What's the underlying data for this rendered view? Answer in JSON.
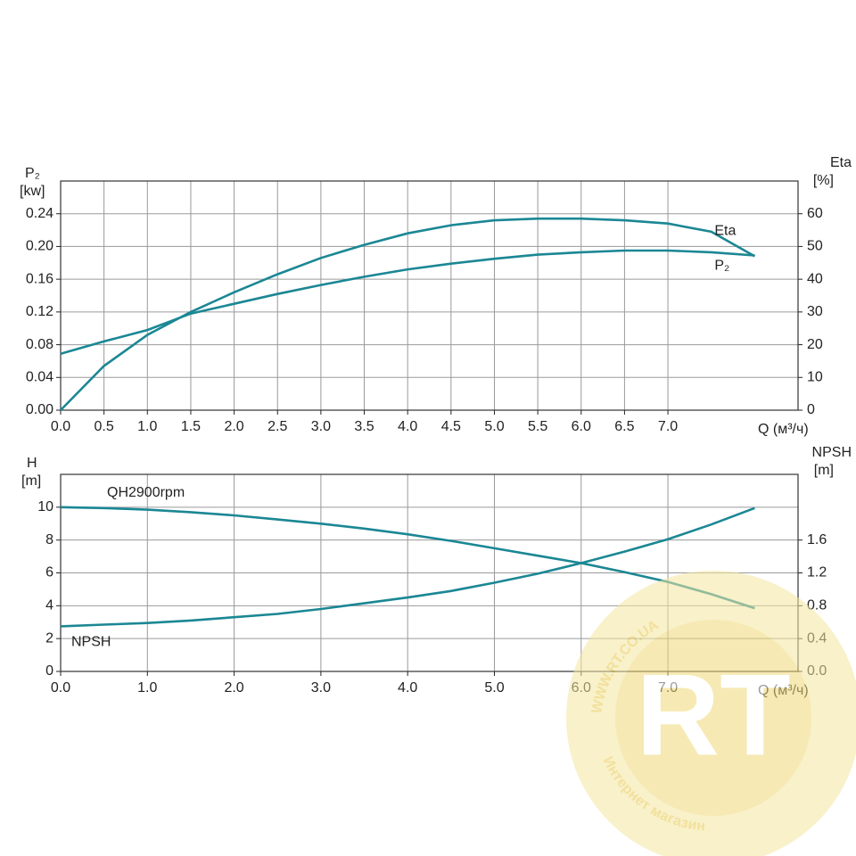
{
  "chart_data": [
    {
      "type": "line",
      "ylabel": "P₂",
      "yunit": "[kw]",
      "y2label": "Eta",
      "y2unit": "[%]",
      "xlabel": "Q (м³/ч)",
      "x": [
        0,
        0.5,
        1,
        1.5,
        2,
        2.5,
        3,
        3.5,
        4,
        4.5,
        5,
        5.5,
        6,
        6.5,
        7,
        7.5,
        8
      ],
      "xlim": [
        0,
        8.5
      ],
      "xticks": [
        {
          "value": 0,
          "label": "0.0"
        },
        0.5,
        {
          "value": 1,
          "label": "1.0"
        },
        1.5,
        {
          "value": 2,
          "label": "2.0"
        },
        2.5,
        {
          "value": 3,
          "label": "3.0"
        },
        3.5,
        {
          "value": 4,
          "label": "4.0"
        },
        4.5,
        {
          "value": 5,
          "label": "5.0"
        },
        5.5,
        {
          "value": 6,
          "label": "6.0"
        },
        6.5,
        {
          "value": 7,
          "label": "7.0"
        }
      ],
      "ylim": [
        0,
        0.28
      ],
      "yticks": [
        {
          "value": 0,
          "label": "0.00"
        },
        0.04,
        0.08,
        0.12,
        0.16,
        {
          "value": 0.2,
          "label": "0.20"
        },
        0.24
      ],
      "y2lim": [
        0,
        70
      ],
      "y2ticks": [
        0,
        10,
        20,
        30,
        40,
        50,
        60
      ],
      "grid": true,
      "series": [
        {
          "name": "Eta",
          "color": "#1b8794",
          "axis": "y2",
          "values": [
            0,
            13.5,
            23,
            30,
            36,
            41.5,
            46.5,
            50.5,
            54,
            56.5,
            58,
            58.5,
            58.5,
            58,
            57,
            54.5,
            47
          ]
        },
        {
          "name": "P₂",
          "color": "#1b8794",
          "values": [
            0.069,
            0.084,
            0.098,
            0.118,
            0.13,
            0.142,
            0.153,
            0.163,
            0.172,
            0.179,
            0.185,
            0.19,
            0.193,
            0.195,
            0.195,
            0.193,
            0.189
          ]
        }
      ]
    },
    {
      "type": "line",
      "ylabel": "H",
      "yunit": "[m]",
      "y2label": "NPSH",
      "y2unit": "[m]",
      "xlabel": "Q (м³/ч)",
      "x": [
        0,
        0.5,
        1,
        1.5,
        2,
        2.5,
        3,
        3.5,
        4,
        4.5,
        5,
        5.5,
        6,
        6.5,
        7,
        7.5,
        8
      ],
      "xlim": [
        0,
        8.5
      ],
      "xticks": [
        {
          "value": 0,
          "label": "0.0"
        },
        {
          "value": 1,
          "label": "1.0"
        },
        {
          "value": 2,
          "label": "2.0"
        },
        {
          "value": 3,
          "label": "3.0"
        },
        {
          "value": 4,
          "label": "4.0"
        },
        {
          "value": 5,
          "label": "5.0"
        },
        {
          "value": 6,
          "label": "6.0"
        },
        {
          "value": 7,
          "label": "7.0"
        }
      ],
      "ylim": [
        0,
        12
      ],
      "yticks": [
        0,
        2,
        4,
        6,
        8,
        10
      ],
      "y2lim": [
        0,
        2.4
      ],
      "y2ticks": [
        {
          "value": 0,
          "label": "0.0"
        },
        0.4,
        0.8,
        1.2,
        1.6
      ],
      "grid": true,
      "series": [
        {
          "name": "QH2900rpm",
          "color": "#1b8794",
          "values": [
            10,
            9.95,
            9.85,
            9.7,
            9.5,
            9.25,
            9.0,
            8.7,
            8.35,
            7.95,
            7.5,
            7.05,
            6.6,
            6.05,
            5.45,
            4.7,
            3.85
          ]
        },
        {
          "name": "NPSH",
          "color": "#1b8794",
          "axis": "y2",
          "values": [
            0.55,
            0.57,
            0.59,
            0.62,
            0.66,
            0.7,
            0.76,
            0.83,
            0.9,
            0.98,
            1.08,
            1.19,
            1.32,
            1.46,
            1.61,
            1.79,
            1.99
          ]
        }
      ]
    }
  ],
  "watermark": {
    "url": "WWW.RT.CO.UA",
    "logo": "RT",
    "caption": "Интернет магазин"
  }
}
